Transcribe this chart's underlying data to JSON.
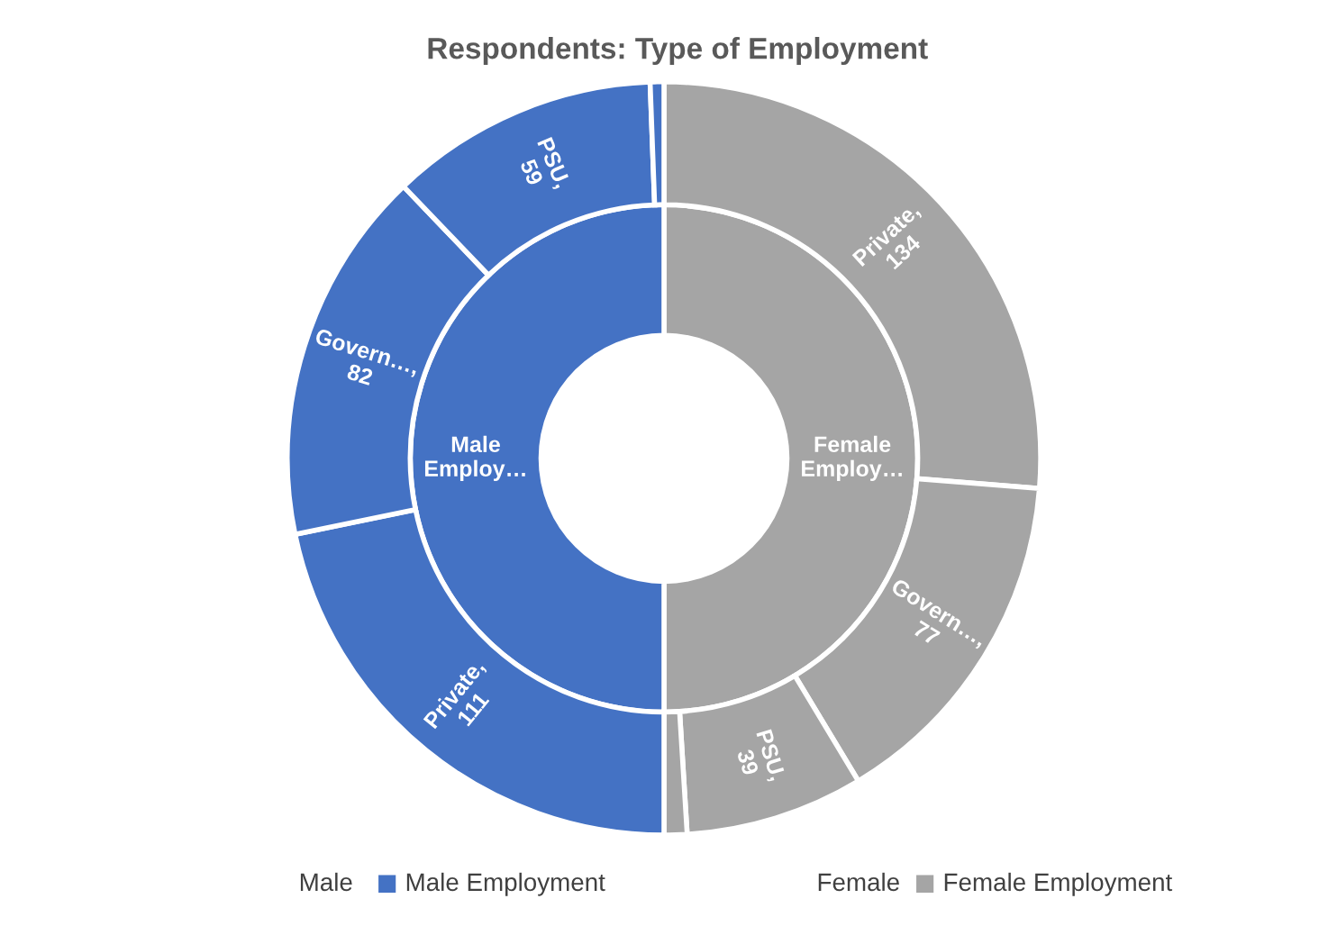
{
  "chart_data": {
    "type": "donut",
    "title": "Respondents: Type of Employment",
    "categories": [
      null,
      null,
      null,
      null,
      null,
      null,
      null,
      null
    ],
    "series": [
      {
        "values": [
          50,
          null,
          null,
          null,
          50,
          null,
          null,
          null
        ],
        "colors": [
          "#a5a5a5",
          null,
          null,
          null,
          "#4472c4",
          null,
          null,
          null
        ],
        "value_labels": [
          "Female Employ…",
          null,
          null,
          null,
          "Male Employ…",
          null,
          null,
          null
        ]
      },
      {
        "values": [
          134,
          77,
          39,
          5,
          111,
          82,
          59,
          3
        ],
        "colors": [
          "#a5a5a5",
          "#a5a5a5",
          "#a5a5a5",
          "#a5a5a5",
          "#4472c4",
          "#4472c4",
          "#4472c4",
          "#4472c4"
        ],
        "value_labels": [
          "Private, 134",
          "Govern…, 77",
          "PSU, 39",
          null,
          "Private, 111",
          "Govern…, 82",
          "PSU, 59",
          null
        ]
      }
    ],
    "annotations": [
      "Female",
      "Female Employment",
      "Male",
      "Male Employment"
    ]
  }
}
